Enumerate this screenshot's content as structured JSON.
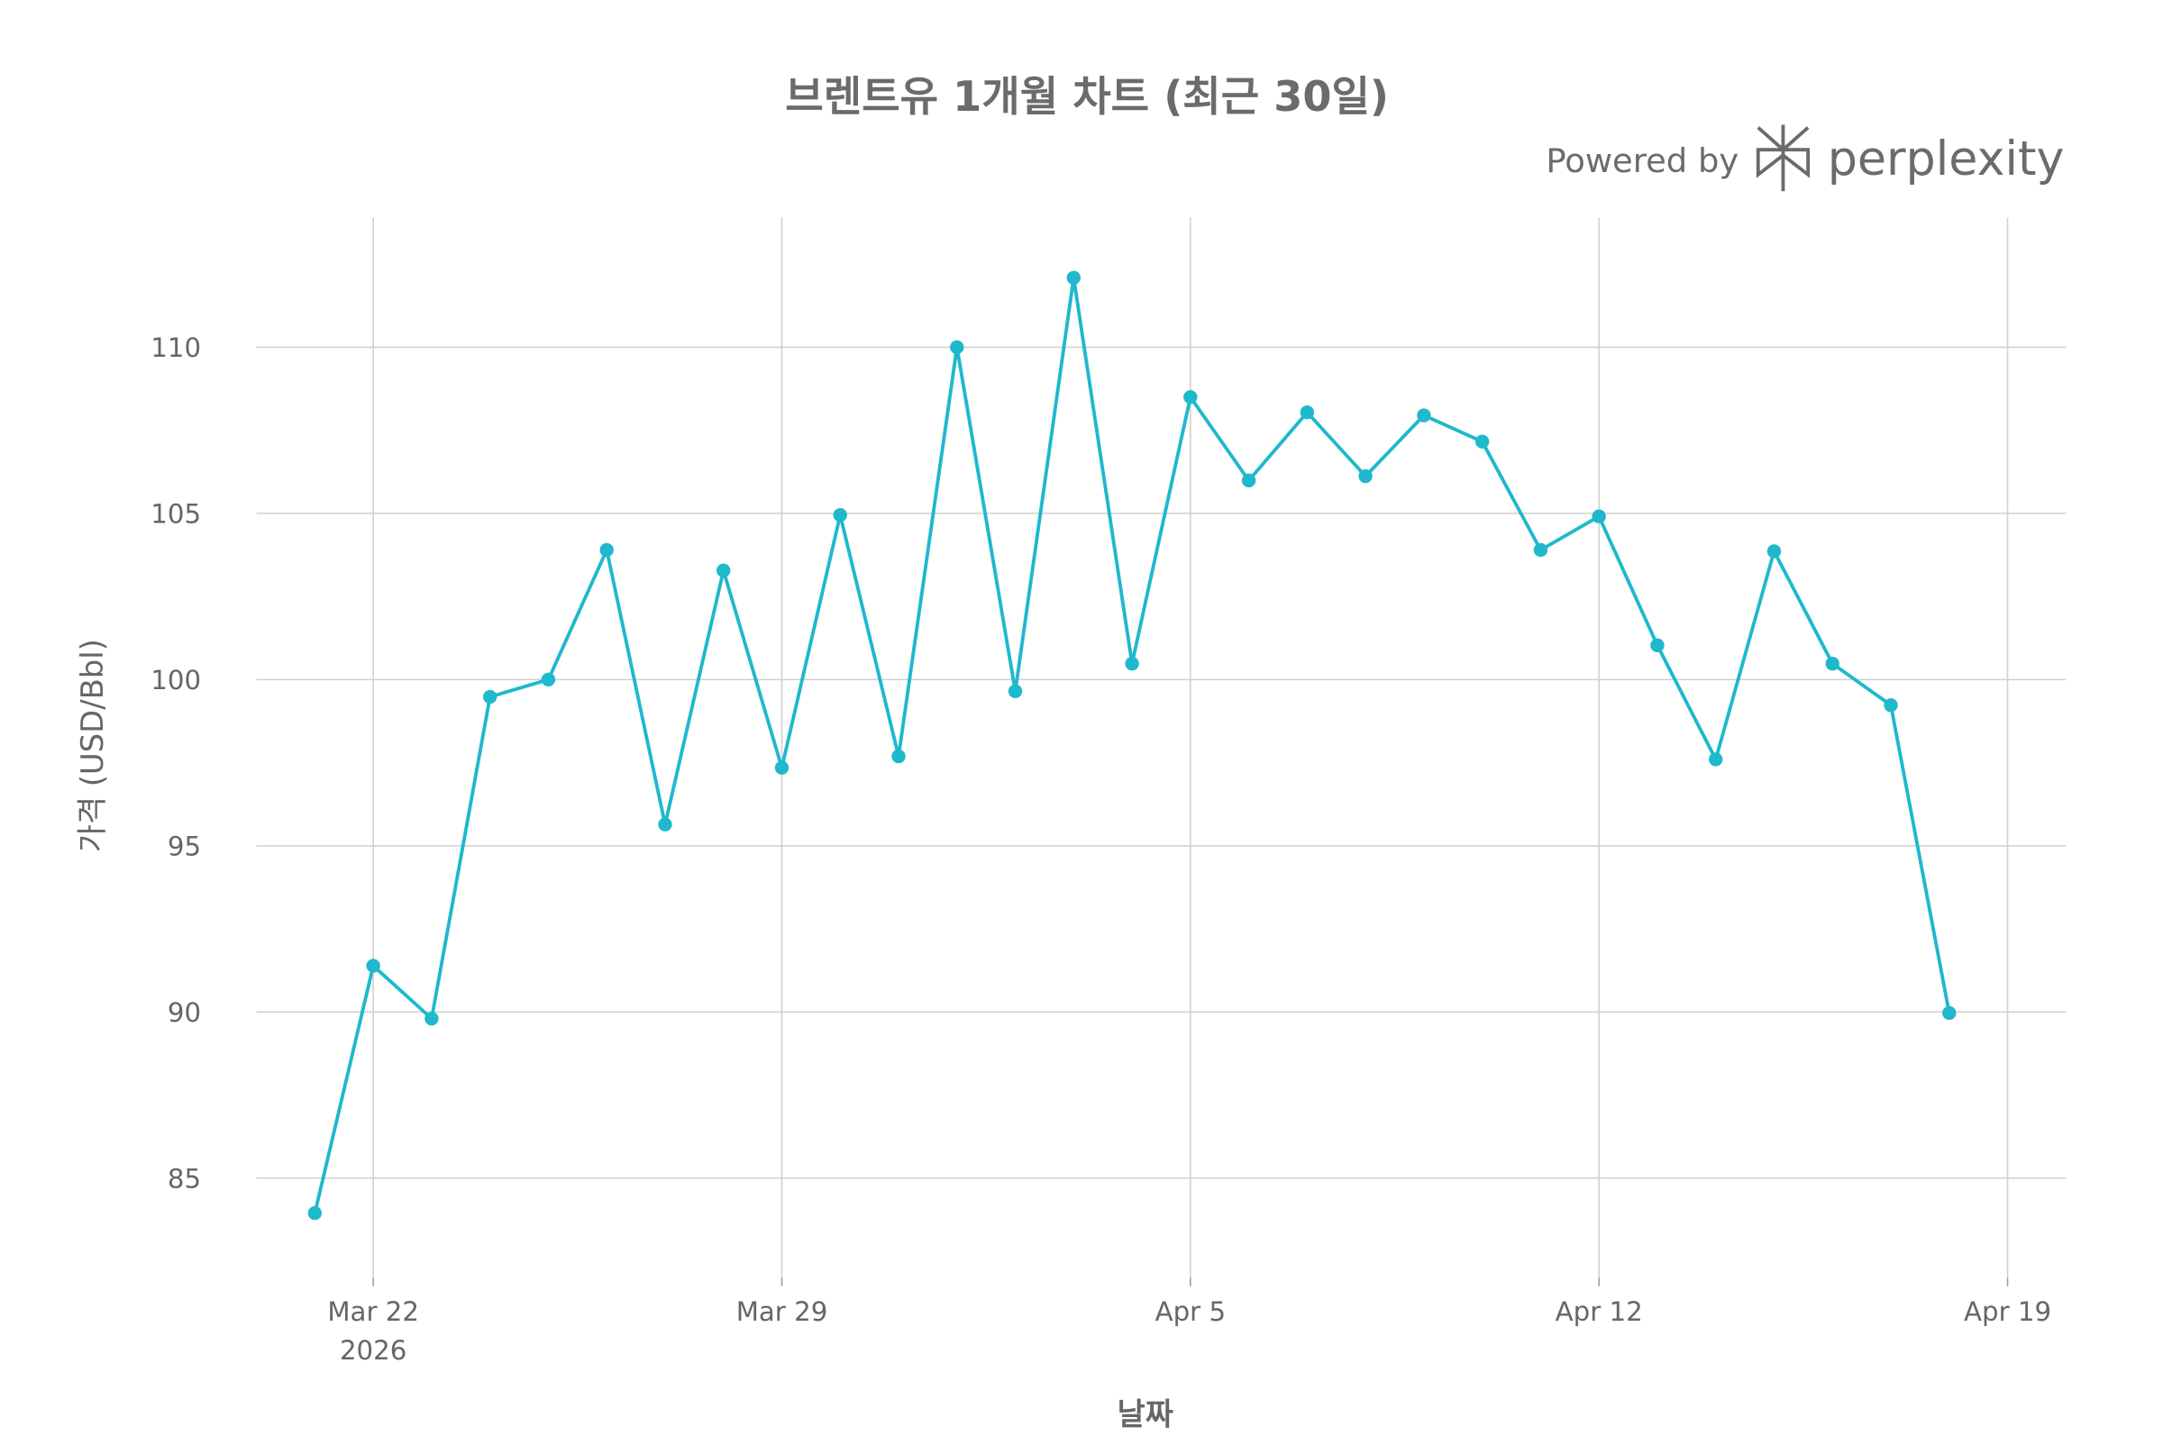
{
  "chart_data": {
    "type": "line",
    "title": "브렌트유 1개월 차트 (최근 30일)",
    "watermark": {
      "prefix": "Powered by",
      "brand": "perplexity"
    },
    "x_label": "날짜",
    "y_label": "가격 (USD/Bbl)",
    "x": [
      "2026-03-21",
      "2026-03-22",
      "2026-03-23",
      "2026-03-24",
      "2026-03-25",
      "2026-03-26",
      "2026-03-27",
      "2026-03-28",
      "2026-03-29",
      "2026-03-30",
      "2026-03-31",
      "2026-04-01",
      "2026-04-02",
      "2026-04-03",
      "2026-04-04",
      "2026-04-05",
      "2026-04-06",
      "2026-04-07",
      "2026-04-08",
      "2026-04-09",
      "2026-04-10",
      "2026-04-11",
      "2026-04-12",
      "2026-04-13",
      "2026-04-14",
      "2026-04-15",
      "2026-04-16",
      "2026-04-17",
      "2026-04-18"
    ],
    "series": [
      {
        "name": "Brent",
        "color": "#1FB8CD",
        "values": [
          83.95,
          91.39,
          89.8,
          99.48,
          100.0,
          103.9,
          95.64,
          103.28,
          97.35,
          104.95,
          97.69,
          110.0,
          99.65,
          112.09,
          100.48,
          108.5,
          105.99,
          108.04,
          106.12,
          107.95,
          107.16,
          103.9,
          104.91,
          101.03,
          97.6,
          103.86,
          100.48,
          99.23,
          89.97
        ]
      }
    ],
    "xlim": [
      "2026-03-20",
      "2026-04-20"
    ],
    "xticks": [
      {
        "value": "2026-03-22",
        "label": "Mar 22\n2026"
      },
      {
        "value": "2026-03-29",
        "label": "Mar 29"
      },
      {
        "value": "2026-04-05",
        "label": "Apr 5"
      },
      {
        "value": "2026-04-12",
        "label": "Apr 12"
      },
      {
        "value": "2026-04-19",
        "label": "Apr 19"
      }
    ],
    "ylim": [
      82,
      113.9
    ],
    "yticks": [
      85,
      90,
      95,
      100,
      105,
      110
    ],
    "grid": true
  }
}
